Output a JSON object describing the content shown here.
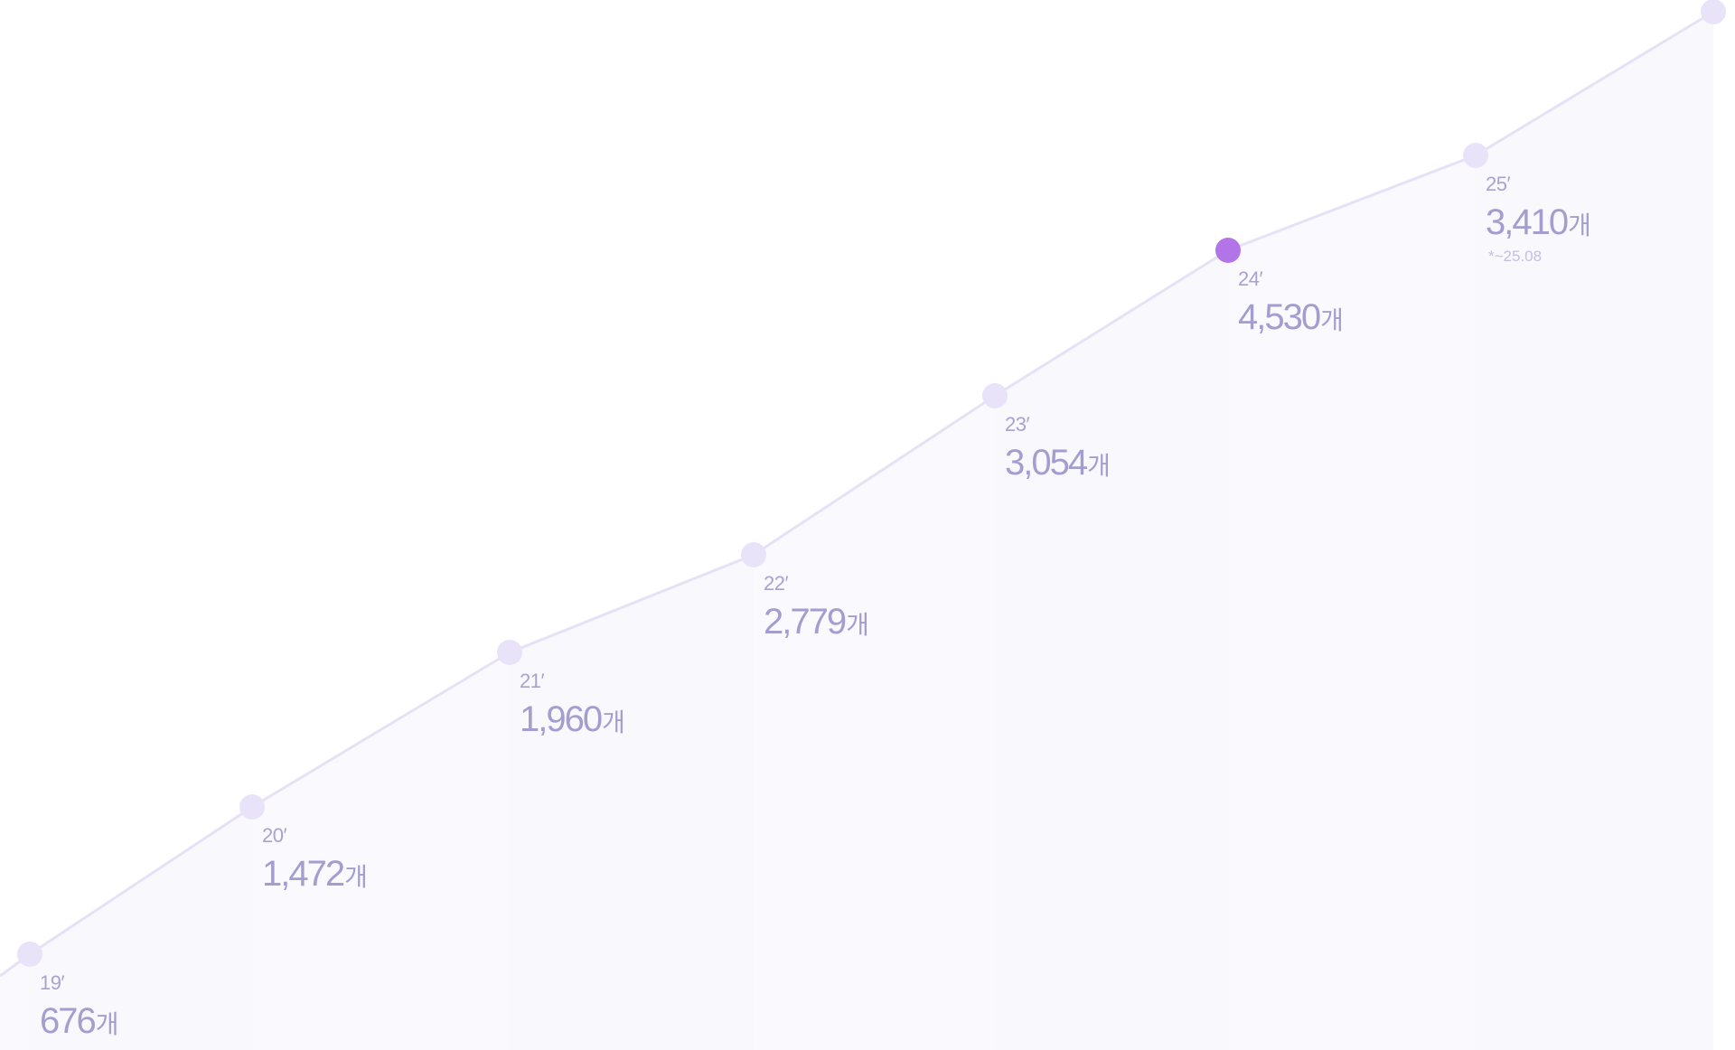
{
  "chart_data": {
    "type": "line",
    "unit": "개",
    "points": [
      {
        "x": "19′",
        "value": 676,
        "display": "676"
      },
      {
        "x": "20′",
        "value": 1472,
        "display": "1,472"
      },
      {
        "x": "21′",
        "value": 1960,
        "display": "1,960"
      },
      {
        "x": "22′",
        "value": 2779,
        "display": "2,779"
      },
      {
        "x": "23′",
        "value": 3054,
        "display": "3,054"
      },
      {
        "x": "24′",
        "value": 4530,
        "display": "4,530",
        "highlight": true
      },
      {
        "x": "25′",
        "value": 3410,
        "display": "3,410",
        "note": "*~25.08"
      }
    ],
    "colors": {
      "line": "#e6e1f6",
      "point": "#e8e3f8",
      "highlight_point": "#b275e8",
      "area": "#f9f8fd",
      "text": "#a49dd0"
    }
  }
}
